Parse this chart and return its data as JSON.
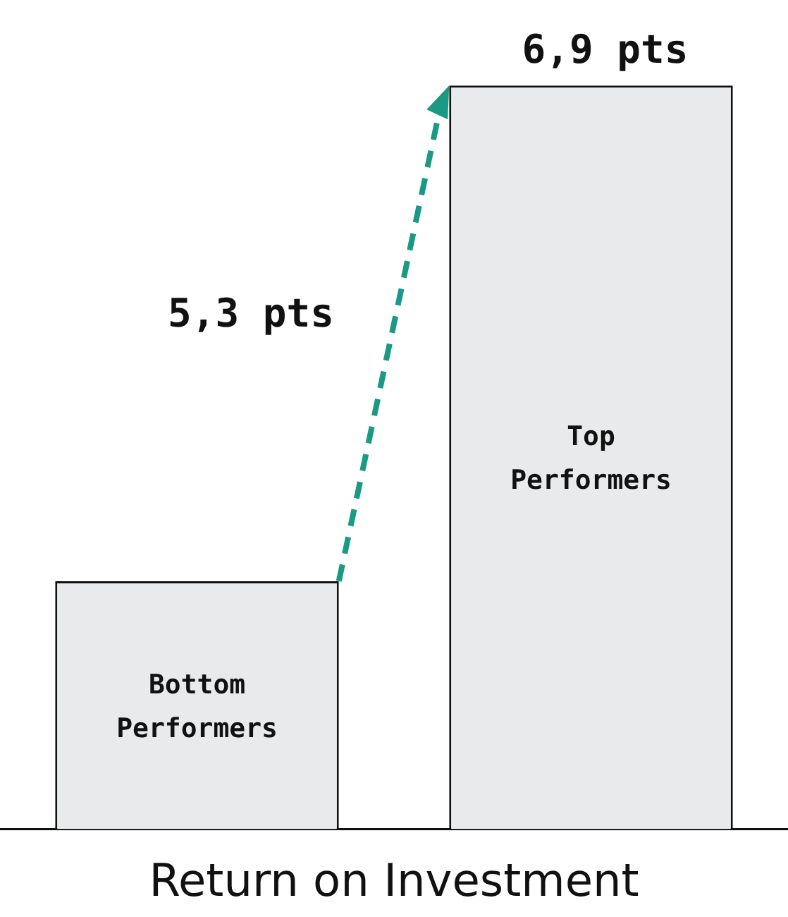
{
  "chart_data": {
    "type": "bar",
    "xlabel": "Return on Investment",
    "categories": [
      "Bottom Performers",
      "Top Performers"
    ],
    "values": [
      2.3,
      6.9
    ],
    "color": "#e8eaeb",
    "value_labels": [
      null,
      "6,9 pts"
    ],
    "annotations": [
      "5,3 pts"
    ],
    "grid": false,
    "legend": false,
    "tick_labels": false
  }
}
